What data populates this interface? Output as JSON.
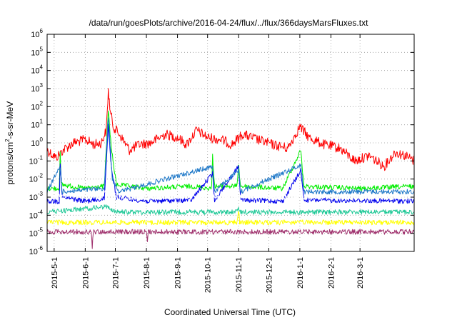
{
  "chart_data": {
    "type": "line",
    "title": "/data/run/goesPlots/archive/2016-04-24/flux/../flux/366daysMarsFluxes.txt",
    "xlabel": "Coordinated Universal Time (UTC)",
    "ylabel": "protons/cm2-s-sr-MeV",
    "ylabel_parts": {
      "pre": "protons/cm",
      "sup": "2",
      "post": "-s-sr-MeV"
    },
    "yscale": "log",
    "ylim": [
      1e-06,
      1000000.0
    ],
    "xlim": [
      "2015-04-24",
      "2016-04-24"
    ],
    "grid": true,
    "y_ticks": [
      {
        "value": 1e-06,
        "base": "10",
        "exp": "-6"
      },
      {
        "value": 1e-05,
        "base": "10",
        "exp": "-5"
      },
      {
        "value": 0.0001,
        "base": "10",
        "exp": "-4"
      },
      {
        "value": 0.001,
        "base": "10",
        "exp": "-3"
      },
      {
        "value": 0.01,
        "base": "10",
        "exp": "-2"
      },
      {
        "value": 0.1,
        "base": "10",
        "exp": "-1"
      },
      {
        "value": 1,
        "base": "10",
        "exp": "0"
      },
      {
        "value": 10,
        "base": "10",
        "exp": "1"
      },
      {
        "value": 100,
        "base": "10",
        "exp": "2"
      },
      {
        "value": 1000,
        "base": "10",
        "exp": "3"
      },
      {
        "value": 10000,
        "base": "10",
        "exp": "4"
      },
      {
        "value": 100000,
        "base": "10",
        "exp": "5"
      },
      {
        "value": 1000000,
        "base": "10",
        "exp": "6"
      }
    ],
    "x_ticks": [
      {
        "date": "2015-05-01",
        "label": "2015-5-1"
      },
      {
        "date": "2015-06-01",
        "label": "2015-6-1"
      },
      {
        "date": "2015-07-01",
        "label": "2015-7-1"
      },
      {
        "date": "2015-08-01",
        "label": "2015-8-1"
      },
      {
        "date": "2015-09-01",
        "label": "2015-9-1"
      },
      {
        "date": "2015-10-01",
        "label": "2015-10-1"
      },
      {
        "date": "2015-11-01",
        "label": "2015-11-1"
      },
      {
        "date": "2015-12-01",
        "label": "2015-12-1"
      },
      {
        "date": "2016-01-01",
        "label": "2016-1-1"
      },
      {
        "date": "2016-02-01",
        "label": "2016-2-1"
      },
      {
        "date": "2016-03-01",
        "label": "2016-3-1"
      }
    ],
    "series": [
      {
        "color": "#ff0000",
        "values": [
          [
            "2015-04-24",
            0.4
          ],
          [
            "2015-05-03",
            0.15
          ],
          [
            "2015-05-10",
            0.4
          ],
          [
            "2015-05-20",
            1.0
          ],
          [
            "2015-06-01",
            1.5
          ],
          [
            "2015-06-10",
            0.8
          ],
          [
            "2015-06-17",
            1.0
          ],
          [
            "2015-06-22",
            5
          ],
          [
            "2015-06-24",
            800
          ],
          [
            "2015-06-26",
            50
          ],
          [
            "2015-06-29",
            8
          ],
          [
            "2015-07-05",
            3
          ],
          [
            "2015-07-15",
            0.4
          ],
          [
            "2015-07-25",
            0.8
          ],
          [
            "2015-08-05",
            1.0
          ],
          [
            "2015-08-20",
            3
          ],
          [
            "2015-09-01",
            2
          ],
          [
            "2015-09-10",
            0.8
          ],
          [
            "2015-09-20",
            5
          ],
          [
            "2015-10-01",
            2
          ],
          [
            "2015-10-15",
            1.5
          ],
          [
            "2015-10-25",
            0.8
          ],
          [
            "2015-11-05",
            3
          ],
          [
            "2015-11-20",
            1.5
          ],
          [
            "2015-12-05",
            0.8
          ],
          [
            "2015-12-20",
            0.5
          ],
          [
            "2016-01-01",
            8
          ],
          [
            "2016-01-10",
            2
          ],
          [
            "2016-01-25",
            0.8
          ],
          [
            "2016-02-10",
            0.5
          ],
          [
            "2016-02-25",
            0.1
          ],
          [
            "2016-03-10",
            0.2
          ],
          [
            "2016-03-25",
            0.05
          ],
          [
            "2016-04-05",
            0.3
          ],
          [
            "2016-04-15",
            0.2
          ],
          [
            "2016-04-24",
            0.1
          ]
        ]
      },
      {
        "color": "#00ee00",
        "values": [
          [
            "2015-04-24",
            0.003
          ],
          [
            "2015-05-06",
            0.003
          ],
          [
            "2015-05-07",
            0.3
          ],
          [
            "2015-05-08",
            0.005
          ],
          [
            "2015-06-01",
            0.003
          ],
          [
            "2015-06-20",
            0.004
          ],
          [
            "2015-06-24",
            70
          ],
          [
            "2015-06-27",
            0.5
          ],
          [
            "2015-07-02",
            0.005
          ],
          [
            "2015-08-01",
            0.003
          ],
          [
            "2015-09-15",
            0.004
          ],
          [
            "2015-10-05",
            0.003
          ],
          [
            "2015-10-06",
            0.2
          ],
          [
            "2015-10-08",
            0.004
          ],
          [
            "2015-10-30",
            0.004
          ],
          [
            "2015-11-01",
            0.05
          ],
          [
            "2015-11-03",
            0.004
          ],
          [
            "2015-12-15",
            0.003
          ],
          [
            "2016-01-02",
            0.4
          ],
          [
            "2016-01-05",
            0.004
          ],
          [
            "2016-03-01",
            0.003
          ],
          [
            "2016-04-24",
            0.004
          ]
        ]
      },
      {
        "color": "#0000ee",
        "values": [
          [
            "2015-04-24",
            0.0006
          ],
          [
            "2015-05-06",
            0.0006
          ],
          [
            "2015-05-07",
            0.08
          ],
          [
            "2015-05-09",
            0.001
          ],
          [
            "2015-06-01",
            0.0006
          ],
          [
            "2015-06-20",
            0.0008
          ],
          [
            "2015-06-24",
            10
          ],
          [
            "2015-06-27",
            0.05
          ],
          [
            "2015-07-02",
            0.001
          ],
          [
            "2015-08-01",
            0.0006
          ],
          [
            "2015-09-15",
            0.0007
          ],
          [
            "2015-10-06",
            0.02
          ],
          [
            "2015-10-08",
            0.0007
          ],
          [
            "2015-11-01",
            0.05
          ],
          [
            "2015-11-03",
            0.0007
          ],
          [
            "2015-12-15",
            0.0006
          ],
          [
            "2016-01-02",
            0.03
          ],
          [
            "2016-01-05",
            0.0007
          ],
          [
            "2016-04-24",
            0.0006
          ]
        ]
      },
      {
        "color": "#1e78c8",
        "values": [
          [
            "2015-04-24",
            0.002
          ],
          [
            "2015-05-07",
            0.05
          ],
          [
            "2015-05-09",
            0.002
          ],
          [
            "2015-06-20",
            0.003
          ],
          [
            "2015-06-24",
            30
          ],
          [
            "2015-06-28",
            0.01
          ],
          [
            "2015-07-05",
            0.002
          ],
          [
            "2015-10-06",
            0.05
          ],
          [
            "2015-10-08",
            0.002
          ],
          [
            "2015-11-01",
            0.03
          ],
          [
            "2015-11-03",
            0.002
          ],
          [
            "2016-01-02",
            0.06
          ],
          [
            "2016-01-05",
            0.002
          ],
          [
            "2016-04-24",
            0.002
          ]
        ]
      },
      {
        "color": "#ffffff",
        "values": [
          [
            "2015-04-24",
            0.001
          ],
          [
            "2015-06-24",
            0.002
          ],
          [
            "2015-07-01",
            0.001
          ],
          [
            "2015-12-31",
            0.001
          ],
          [
            "2016-04-24",
            0.001
          ]
        ]
      },
      {
        "color": "#1ec896",
        "values": [
          [
            "2015-04-24",
            0.00015
          ],
          [
            "2015-06-24",
            0.0003
          ],
          [
            "2015-07-01",
            0.00015
          ],
          [
            "2015-10-30",
            0.00015
          ],
          [
            "2015-11-01",
            0.0003
          ],
          [
            "2015-11-02",
            0.00015
          ],
          [
            "2016-04-24",
            0.00015
          ]
        ]
      },
      {
        "color": "#ffff00",
        "values": [
          [
            "2015-04-24",
            4e-05
          ],
          [
            "2015-10-30",
            4e-05
          ],
          [
            "2015-11-01",
            0.0002
          ],
          [
            "2015-11-02",
            4e-05
          ],
          [
            "2016-04-24",
            4e-05
          ]
        ]
      },
      {
        "color": "#a0326e",
        "values": [
          [
            "2015-04-24",
            1.2e-05
          ],
          [
            "2015-06-07",
            1.2e-05
          ],
          [
            "2015-06-08",
            1.5e-06
          ],
          [
            "2015-06-09",
            1.2e-05
          ],
          [
            "2015-08-01",
            1.2e-05
          ],
          [
            "2015-08-02",
            3e-06
          ],
          [
            "2015-08-03",
            1.2e-05
          ],
          [
            "2016-04-24",
            1.2e-05
          ]
        ]
      }
    ]
  }
}
